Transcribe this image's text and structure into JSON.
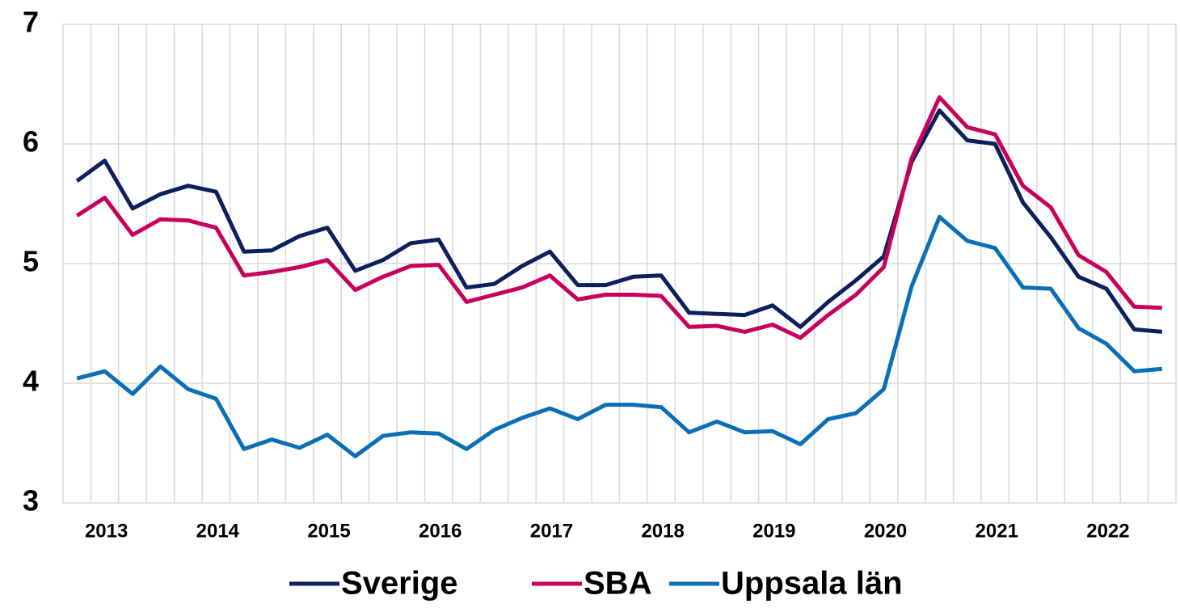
{
  "chart_data": {
    "type": "line",
    "categories": [
      null,
      "2013",
      null,
      null,
      null,
      "2014",
      null,
      null,
      null,
      "2015",
      null,
      null,
      null,
      "2016",
      null,
      null,
      null,
      "2017",
      null,
      null,
      null,
      "2018",
      null,
      null,
      null,
      "2019",
      null,
      null,
      null,
      "2020",
      null,
      null,
      null,
      "2021",
      null,
      null,
      null,
      "2022",
      null,
      null
    ],
    "series": [
      {
        "name": "Sverige",
        "color": "#0d1f5c",
        "values": [
          5.69,
          5.86,
          5.46,
          5.58,
          5.65,
          5.6,
          5.1,
          5.11,
          5.23,
          5.3,
          4.94,
          5.03,
          5.17,
          5.2,
          4.8,
          4.83,
          4.98,
          5.1,
          4.82,
          4.82,
          4.89,
          4.9,
          4.59,
          4.58,
          4.57,
          4.65,
          4.47,
          4.68,
          4.86,
          5.06,
          5.85,
          6.28,
          6.03,
          6.0,
          5.51,
          5.22,
          4.89,
          4.79,
          4.45,
          4.43
        ]
      },
      {
        "name": "SBA",
        "color": "#c8005a",
        "values": [
          5.4,
          5.55,
          5.24,
          5.37,
          5.36,
          5.3,
          4.9,
          4.93,
          4.97,
          5.03,
          4.78,
          4.89,
          4.98,
          4.99,
          4.68,
          4.74,
          4.8,
          4.9,
          4.7,
          4.74,
          4.74,
          4.73,
          4.47,
          4.48,
          4.43,
          4.49,
          4.38,
          4.57,
          4.74,
          4.97,
          5.88,
          6.39,
          6.14,
          6.08,
          5.65,
          5.47,
          5.07,
          4.93,
          4.64,
          4.63
        ]
      },
      {
        "name": "Uppsala län",
        "color": "#0a6fb5",
        "values": [
          4.04,
          4.1,
          3.91,
          4.14,
          3.95,
          3.87,
          3.45,
          3.53,
          3.46,
          3.57,
          3.39,
          3.56,
          3.59,
          3.58,
          3.45,
          3.61,
          3.71,
          3.79,
          3.7,
          3.82,
          3.82,
          3.8,
          3.59,
          3.68,
          3.59,
          3.6,
          3.49,
          3.7,
          3.75,
          3.95,
          4.81,
          5.39,
          5.19,
          5.13,
          4.8,
          4.79,
          4.46,
          4.33,
          4.1,
          4.12
        ]
      }
    ],
    "ylim": [
      3,
      7
    ],
    "yticks": [
      3,
      4,
      5,
      6,
      7
    ],
    "grid": true,
    "legend": "bottom"
  }
}
